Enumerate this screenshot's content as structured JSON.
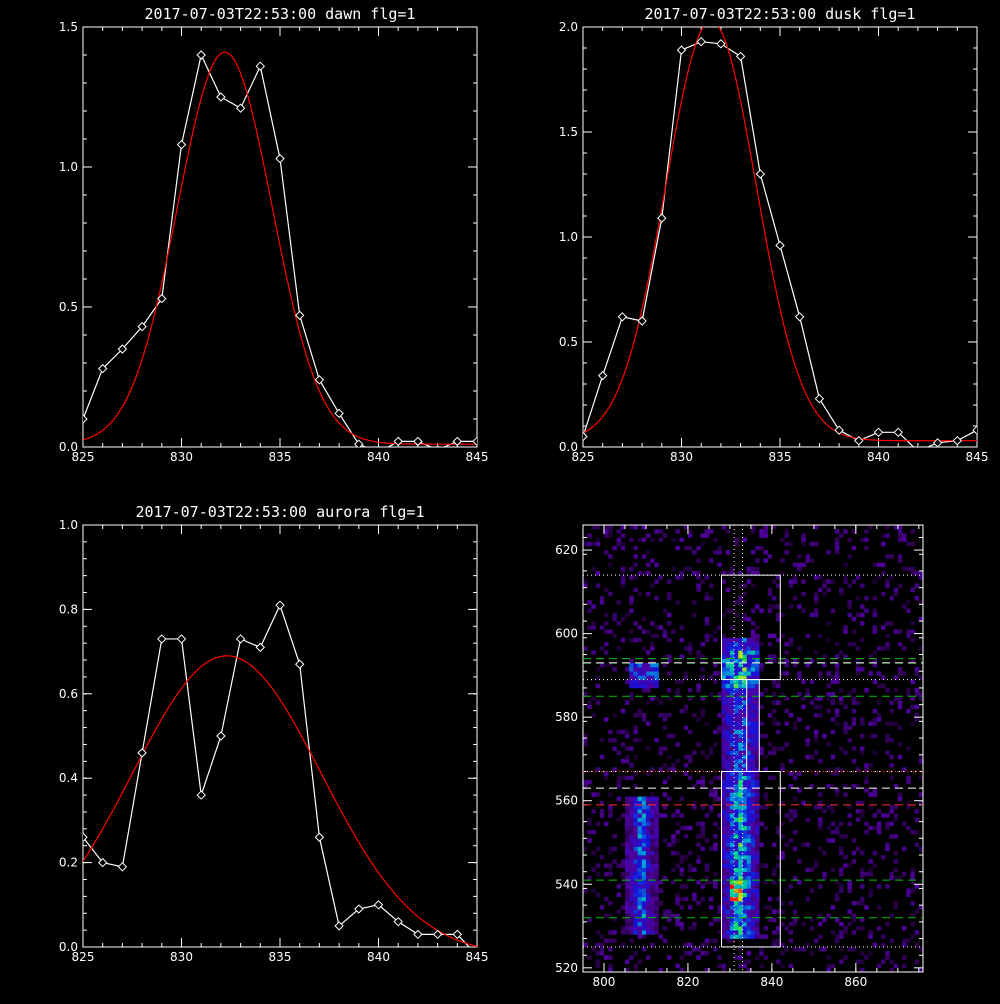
{
  "colors": {
    "background": "#000000",
    "axes": "#ffffff",
    "data": "#ffffff",
    "fit": "#ff0000",
    "green": "#00c000",
    "white_dash": "#ffffff",
    "red_dash": "#ff3030"
  },
  "chart_data": [
    {
      "id": "dawn",
      "type": "line",
      "title": "2017-07-03T22:53:00 dawn flg=1",
      "xlim": [
        825,
        845
      ],
      "ylim": [
        0,
        1.5
      ],
      "xticks": [
        "825",
        "830",
        "835",
        "840",
        "845"
      ],
      "yticks": [
        "0.0",
        "0.5",
        "1.0",
        "1.5"
      ],
      "x": [
        825,
        826,
        827,
        828,
        829,
        830,
        831,
        832,
        833,
        834,
        835,
        836,
        837,
        838,
        839,
        840,
        841,
        842,
        843,
        844,
        845
      ],
      "y": [
        0.1,
        0.28,
        0.35,
        0.43,
        0.53,
        1.08,
        1.4,
        1.25,
        1.21,
        1.36,
        1.03,
        0.47,
        0.24,
        0.12,
        0.01,
        -0.02,
        0.02,
        0.02,
        -0.01,
        0.02,
        0.02
      ],
      "fit": {
        "amplitude": 1.4,
        "center": 832.2,
        "sigma": 2.4,
        "baseline": 0.01
      }
    },
    {
      "id": "dusk",
      "type": "line",
      "title": "2017-07-03T22:53:00 dusk flg=1",
      "xlim": [
        825,
        845
      ],
      "ylim": [
        0,
        2.0
      ],
      "xticks": [
        "825",
        "830",
        "835",
        "840",
        "845"
      ],
      "yticks": [
        "0.0",
        "0.5",
        "1.0",
        "1.5",
        "2.0"
      ],
      "x": [
        825,
        826,
        827,
        828,
        829,
        830,
        831,
        832,
        833,
        834,
        835,
        836,
        837,
        838,
        839,
        840,
        841,
        842,
        843,
        844,
        845
      ],
      "y": [
        0.05,
        0.34,
        0.62,
        0.6,
        1.09,
        1.89,
        1.93,
        1.92,
        1.86,
        1.3,
        0.96,
        0.62,
        0.23,
        0.08,
        0.03,
        0.07,
        0.07,
        -0.02,
        0.02,
        0.03,
        0.08
      ],
      "fit": {
        "amplitude": 2.0,
        "center": 831.5,
        "sigma": 2.3,
        "baseline": 0.03
      }
    },
    {
      "id": "aurora",
      "type": "line",
      "title": "2017-07-03T22:53:00 aurora flg=1",
      "xlim": [
        825,
        845
      ],
      "ylim": [
        0,
        1.0
      ],
      "xticks": [
        "825",
        "830",
        "835",
        "840",
        "845"
      ],
      "yticks": [
        "0.0",
        "0.2",
        "0.4",
        "0.6",
        "0.8",
        "1.0"
      ],
      "x": [
        825,
        826,
        827,
        828,
        829,
        830,
        831,
        832,
        833,
        834,
        835,
        836,
        837,
        838,
        839,
        840,
        841,
        842,
        843,
        844,
        845
      ],
      "y": [
        0.26,
        0.2,
        0.19,
        0.46,
        0.73,
        0.73,
        0.36,
        0.5,
        0.73,
        0.71,
        0.81,
        0.67,
        0.26,
        0.05,
        0.09,
        0.1,
        0.06,
        0.03,
        0.03,
        0.03,
        -0.02
      ],
      "fit": {
        "amplitude": 0.71,
        "center": 832.3,
        "sigma": 4.8,
        "baseline": -0.02
      }
    },
    {
      "id": "image",
      "type": "heatmap",
      "title": "",
      "xlim": [
        795,
        876
      ],
      "ylim": [
        519,
        626
      ],
      "xticks": [
        "800",
        "820",
        "840",
        "860"
      ],
      "yticks": [
        "520",
        "540",
        "560",
        "580",
        "600",
        "620"
      ],
      "boxes": [
        {
          "x0": 828,
          "x1": 842,
          "y0": 589,
          "y1": 614
        },
        {
          "x0": 828,
          "x1": 842,
          "y0": 525,
          "y1": 567
        },
        {
          "x0": 834,
          "x1": 837,
          "y0": 567,
          "y1": 589
        }
      ],
      "dotted_h": [
        614,
        589,
        567,
        525
      ],
      "dotted_v": [
        831,
        833
      ],
      "green_dash": [
        594,
        593,
        585,
        541,
        532
      ],
      "white_dash": [
        593,
        563
      ],
      "red_dash": [
        559
      ],
      "red_dot": [
        567
      ]
    }
  ]
}
